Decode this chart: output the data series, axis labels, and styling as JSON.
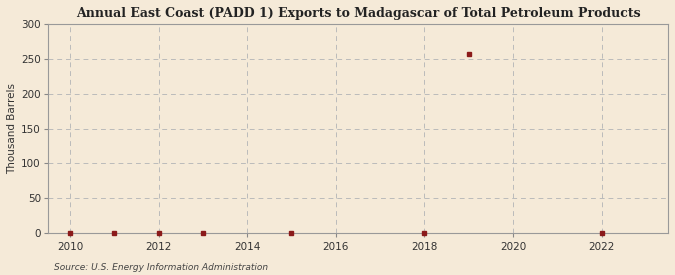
{
  "title": "Annual East Coast (PADD 1) Exports to Madagascar of Total Petroleum Products",
  "ylabel": "Thousand Barrels",
  "source": "Source: U.S. Energy Information Administration",
  "background_color": "#f5ead8",
  "plot_background_color": "#f5ead8",
  "marker_color": "#8b1a1a",
  "grid_color": "#bbbbbb",
  "xlim": [
    2009.5,
    2023.5
  ],
  "ylim": [
    0,
    300
  ],
  "yticks": [
    0,
    50,
    100,
    150,
    200,
    250,
    300
  ],
  "xticks": [
    2010,
    2012,
    2014,
    2016,
    2018,
    2020,
    2022
  ],
  "data_x": [
    2010,
    2011,
    2012,
    2013,
    2015,
    2018,
    2019,
    2022
  ],
  "data_y": [
    0,
    0,
    0,
    0,
    0,
    0,
    257,
    0
  ]
}
